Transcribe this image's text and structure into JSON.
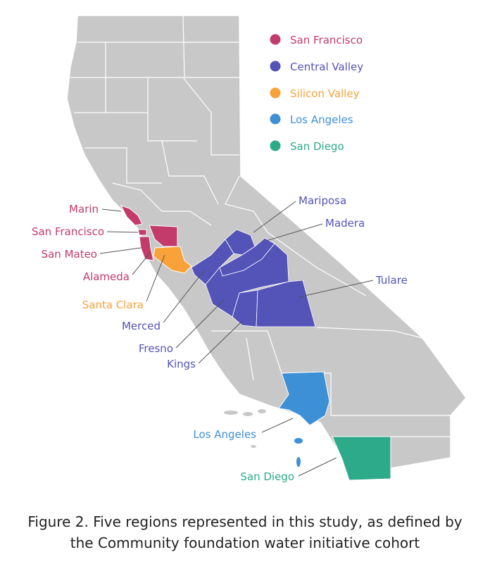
{
  "legend": [
    {
      "label": "San Francisco",
      "color": "#C23B6A"
    },
    {
      "label": "Central Valley",
      "color": "#5353B8"
    },
    {
      "label": "Silicon Valley",
      "color": "#F9A23A"
    },
    {
      "label": "Los Angeles",
      "color": "#3D8FD6"
    },
    {
      "label": "San Diego",
      "color": "#2CAA8A"
    }
  ],
  "county_labels": {
    "marin": "Marin",
    "san_francisco": "San Francisco",
    "san_mateo": "San Mateo",
    "alameda": "Alameda",
    "santa_clara": "Santa Clara",
    "merced": "Merced",
    "fresno": "Fresno",
    "kings": "Kings",
    "mariposa": "Mariposa",
    "madera": "Madera",
    "tulare": "Tulare",
    "los_angeles": "Los Angeles",
    "san_diego": "San Diego"
  },
  "colors": {
    "land": "#C8C8C8",
    "border": "#FFFFFF"
  },
  "caption": {
    "line1": "Figure 2. Five regions represented in this study, as defined by",
    "line2": "the  Community foundation water initiative cohort"
  }
}
